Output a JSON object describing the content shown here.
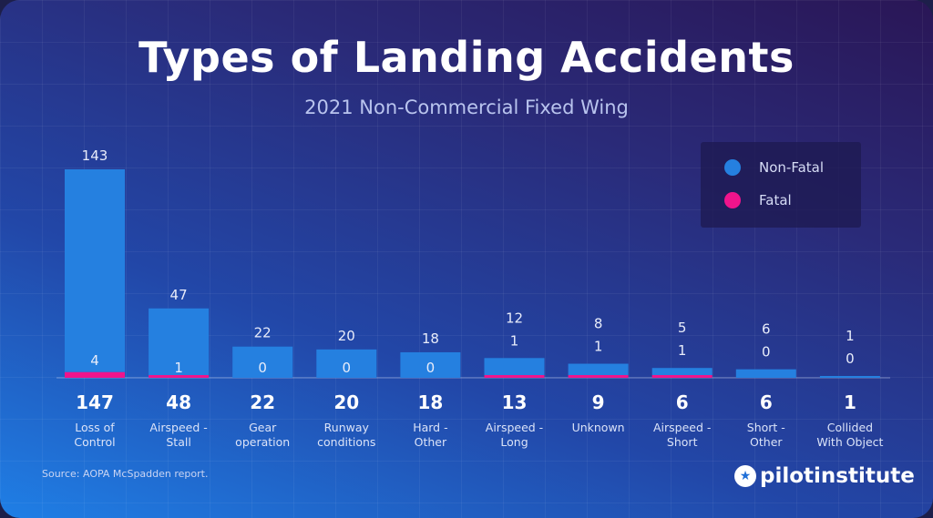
{
  "title": "Types of Landing Accidents",
  "subtitle": "2021 Non-Commercial Fixed Wing",
  "legend": {
    "items": [
      {
        "label": "Non-Fatal",
        "color": "#2580e0"
      },
      {
        "label": "Fatal",
        "color": "#f0148c"
      }
    ]
  },
  "chart_data": {
    "type": "bar",
    "stacked": true,
    "title": "Types of Landing Accidents",
    "subtitle": "2021 Non-Commercial Fixed Wing",
    "categories": [
      "Loss of Control",
      "Airspeed - Stall",
      "Gear operation",
      "Runway conditions",
      "Hard - Other",
      "Airspeed - Long",
      "Unknown",
      "Airspeed - Short",
      "Short - Other",
      "Collided With Object"
    ],
    "totals": [
      147,
      48,
      22,
      20,
      18,
      13,
      9,
      6,
      6,
      1
    ],
    "series": [
      {
        "name": "Non-Fatal",
        "color": "#2580e0",
        "values": [
          143,
          47,
          22,
          20,
          18,
          12,
          8,
          5,
          6,
          1
        ]
      },
      {
        "name": "Fatal",
        "color": "#f0148c",
        "values": [
          4,
          1,
          0,
          0,
          0,
          1,
          1,
          1,
          0,
          0
        ]
      }
    ],
    "legend_position": "top-right",
    "grid": false
  },
  "source": "Source: AOPA McSpadden report.",
  "brand": "pilotinstitute"
}
